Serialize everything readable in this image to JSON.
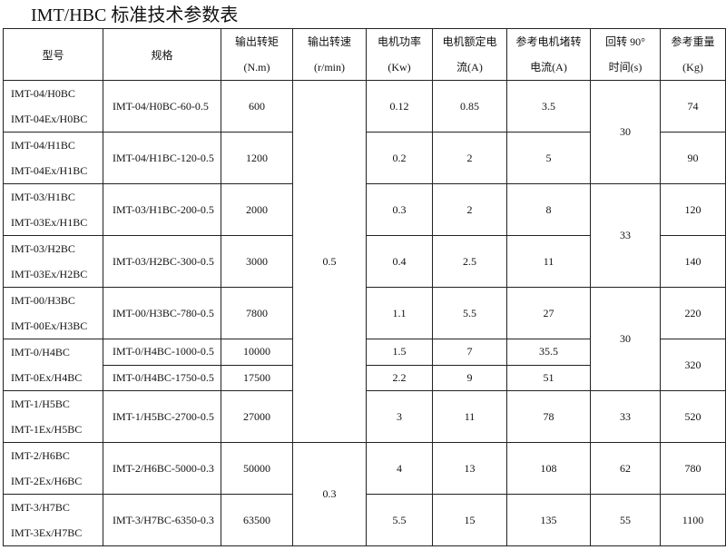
{
  "title": "IMT/HBC 标准技术参数表",
  "headers": {
    "model": "型号",
    "spec": "规格",
    "torque": [
      "输出转矩",
      "(N.m)"
    ],
    "speed": [
      "输出转速",
      "(r/min)"
    ],
    "power": [
      "电机功率",
      "(Kw)"
    ],
    "current": [
      "电机额定电",
      "流(A)"
    ],
    "stall": [
      "参考电机堵转",
      "电流(A)"
    ],
    "time": [
      "回转 90°",
      "时间(s)"
    ],
    "weight": [
      "参考重量",
      "(Kg)"
    ]
  },
  "speed_groups": [
    "0.5",
    "0.3"
  ],
  "time_groups": [
    "30",
    "33",
    "30",
    "33",
    "62",
    "55"
  ],
  "rows": [
    {
      "models": [
        "IMT-04/H0BC",
        "IMT-04Ex/H0BC"
      ],
      "spec": "IMT-04/H0BC-60-0.5",
      "torque": "600",
      "power": "0.12",
      "current": "0.85",
      "stall": "3.5",
      "weight": "74"
    },
    {
      "models": [
        "IMT-04/H1BC",
        "IMT-04Ex/H1BC"
      ],
      "spec": "IMT-04/H1BC-120-0.5",
      "torque": "1200",
      "power": "0.2",
      "current": "2",
      "stall": "5",
      "weight": "90"
    },
    {
      "models": [
        "IMT-03/H1BC",
        "IMT-03Ex/H1BC"
      ],
      "spec": "IMT-03/H1BC-200-0.5",
      "torque": "2000",
      "power": "0.3",
      "current": "2",
      "stall": "8",
      "weight": "120"
    },
    {
      "models": [
        "IMT-03/H2BC",
        "IMT-03Ex/H2BC"
      ],
      "spec": "IMT-03/H2BC-300-0.5",
      "torque": "3000",
      "power": "0.4",
      "current": "2.5",
      "stall": "11",
      "weight": "140"
    },
    {
      "models": [
        "IMT-00/H3BC",
        "IMT-00Ex/H3BC"
      ],
      "spec": "IMT-00/H3BC-780-0.5",
      "torque": "7800",
      "power": "1.1",
      "current": "5.5",
      "stall": "27",
      "weight": "220"
    },
    {
      "models": [
        "IMT-0/H4BC",
        "IMT-0Ex/H4BC"
      ],
      "spec": "IMT-0/H4BC-1000-0.5",
      "torque": "10000",
      "power": "1.5",
      "current": "7",
      "stall": "35.5",
      "weight": "320"
    },
    {
      "spec": "IMT-0/H4BC-1750-0.5",
      "torque": "17500",
      "power": "2.2",
      "current": "9",
      "stall": "51"
    },
    {
      "models": [
        "IMT-1/H5BC",
        "IMT-1Ex/H5BC"
      ],
      "spec": "IMT-1/H5BC-2700-0.5",
      "torque": "27000",
      "power": "3",
      "current": "11",
      "stall": "78",
      "weight": "520"
    },
    {
      "models": [
        "IMT-2/H6BC",
        "IMT-2Ex/H6BC"
      ],
      "spec": "IMT-2/H6BC-5000-0.3",
      "torque": "50000",
      "power": "4",
      "current": "13",
      "stall": "108",
      "weight": "780"
    },
    {
      "models": [
        "IMT-3/H7BC",
        "IMT-3Ex/H7BC"
      ],
      "spec": "IMT-3/H7BC-6350-0.3",
      "torque": "63500",
      "power": "5.5",
      "current": "15",
      "stall": "135",
      "weight": "1100"
    }
  ]
}
